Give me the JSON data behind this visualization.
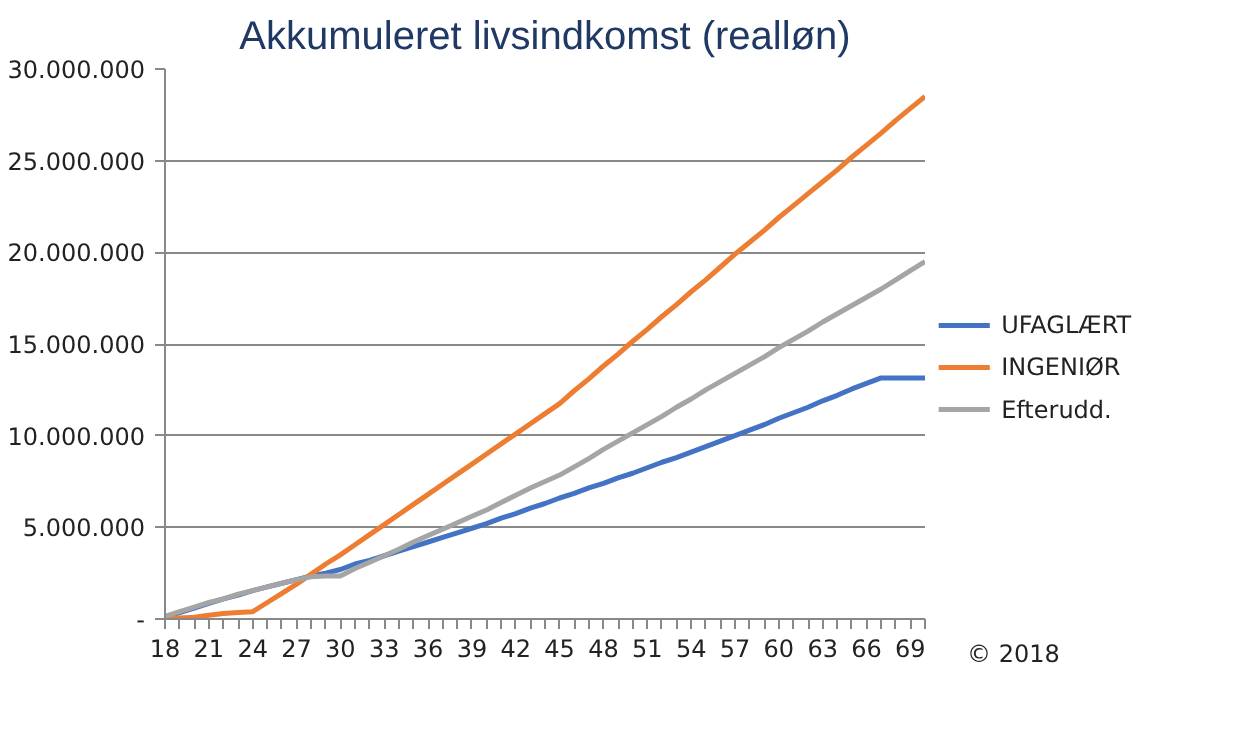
{
  "chart_data": {
    "type": "line",
    "title": "Akkumuleret livsindkomst (realløn)",
    "x": [
      18,
      19,
      20,
      21,
      22,
      23,
      24,
      25,
      26,
      27,
      28,
      29,
      30,
      31,
      32,
      33,
      34,
      35,
      36,
      37,
      38,
      39,
      40,
      41,
      42,
      43,
      44,
      45,
      46,
      47,
      48,
      49,
      50,
      51,
      52,
      53,
      54,
      55,
      56,
      57,
      58,
      59,
      60,
      61,
      62,
      63,
      64,
      65,
      66,
      67,
      68,
      69,
      70
    ],
    "series": [
      {
        "name": "UFAGLÆRT",
        "color": "#4472c4",
        "values": [
          100000,
          350000,
          600000,
          850000,
          1100000,
          1300000,
          1550000,
          1750000,
          1950000,
          2150000,
          2350000,
          2500000,
          2700000,
          3000000,
          3200000,
          3450000,
          3700000,
          3950000,
          4200000,
          4450000,
          4700000,
          4950000,
          5200000,
          5500000,
          5750000,
          6050000,
          6300000,
          6600000,
          6850000,
          7150000,
          7400000,
          7700000,
          7950000,
          8250000,
          8550000,
          8800000,
          9100000,
          9400000,
          9700000,
          10000000,
          10300000,
          10600000,
          10950000,
          11250000,
          11550000,
          11900000,
          12200000,
          12550000,
          12850000,
          13150000,
          13150000,
          13150000,
          13150000
        ]
      },
      {
        "name": "INGENIØR",
        "color": "#ed7d31",
        "values": [
          0,
          50000,
          100000,
          200000,
          300000,
          350000,
          400000,
          900000,
          1400000,
          1900000,
          2450000,
          3000000,
          3500000,
          4050000,
          4600000,
          5150000,
          5700000,
          6250000,
          6800000,
          7350000,
          7900000,
          8450000,
          9000000,
          9550000,
          10100000,
          10650000,
          11200000,
          11750000,
          12450000,
          13100000,
          13800000,
          14450000,
          15150000,
          15800000,
          16500000,
          17150000,
          17850000,
          18500000,
          19200000,
          19900000,
          20550000,
          21200000,
          21900000,
          22550000,
          23200000,
          23850000,
          24500000,
          25200000,
          25850000,
          26500000,
          27200000,
          27850000,
          28500000
        ]
      },
      {
        "name": "Efterudd.",
        "color": "#a5a5a5",
        "values": [
          150000,
          400000,
          650000,
          900000,
          1100000,
          1350000,
          1550000,
          1750000,
          1950000,
          2150000,
          2300000,
          2350000,
          2350000,
          2750000,
          3100000,
          3450000,
          3800000,
          4200000,
          4550000,
          4900000,
          5250000,
          5600000,
          5950000,
          6350000,
          6750000,
          7150000,
          7500000,
          7850000,
          8300000,
          8750000,
          9250000,
          9700000,
          10150000,
          10600000,
          11050000,
          11550000,
          12000000,
          12500000,
          12950000,
          13400000,
          13850000,
          14300000,
          14800000,
          15250000,
          15700000,
          16200000,
          16650000,
          17100000,
          17550000,
          18000000,
          18500000,
          19000000,
          19500000
        ]
      }
    ],
    "xlim": [
      18,
      70
    ],
    "xticks": [
      18,
      {
        "value": 19,
        "label": null
      },
      {
        "value": 20,
        "label": null
      },
      21,
      {
        "value": 22,
        "label": null
      },
      {
        "value": 23,
        "label": null
      },
      24,
      {
        "value": 25,
        "label": null
      },
      {
        "value": 26,
        "label": null
      },
      27,
      {
        "value": 28,
        "label": null
      },
      {
        "value": 29,
        "label": null
      },
      30,
      {
        "value": 31,
        "label": null
      },
      {
        "value": 32,
        "label": null
      },
      33,
      {
        "value": 34,
        "label": null
      },
      {
        "value": 35,
        "label": null
      },
      36,
      {
        "value": 37,
        "label": null
      },
      {
        "value": 38,
        "label": null
      },
      39,
      {
        "value": 40,
        "label": null
      },
      {
        "value": 41,
        "label": null
      },
      42,
      {
        "value": 43,
        "label": null
      },
      {
        "value": 44,
        "label": null
      },
      45,
      {
        "value": 46,
        "label": null
      },
      {
        "value": 47,
        "label": null
      },
      48,
      {
        "value": 49,
        "label": null
      },
      {
        "value": 50,
        "label": null
      },
      51,
      {
        "value": 52,
        "label": null
      },
      {
        "value": 53,
        "label": null
      },
      54,
      {
        "value": 55,
        "label": null
      },
      {
        "value": 56,
        "label": null
      },
      57,
      {
        "value": 58,
        "label": null
      },
      {
        "value": 59,
        "label": null
      },
      60,
      {
        "value": 61,
        "label": null
      },
      {
        "value": 62,
        "label": null
      },
      63,
      {
        "value": 64,
        "label": null
      },
      {
        "value": 65,
        "label": null
      },
      66,
      {
        "value": 67,
        "label": null
      },
      {
        "value": 68,
        "label": null
      },
      69,
      {
        "value": 70,
        "label": null
      }
    ],
    "ylim": [
      0,
      30000000
    ],
    "yticks": [
      {
        "value": 0,
        "label": "-"
      },
      {
        "value": 5000000,
        "label": "5.000.000"
      },
      {
        "value": 10000000,
        "label": "10.000.000"
      },
      {
        "value": 15000000,
        "label": "15.000.000"
      },
      {
        "value": 20000000,
        "label": "20.000.000"
      },
      {
        "value": 25000000,
        "label": "25.000.000"
      },
      {
        "value": 30000000,
        "label": "30.000.000"
      }
    ],
    "grid": "y",
    "legend": "right",
    "marker": "none",
    "line_style": "solid",
    "annotations": [
      "© 2018"
    ]
  }
}
